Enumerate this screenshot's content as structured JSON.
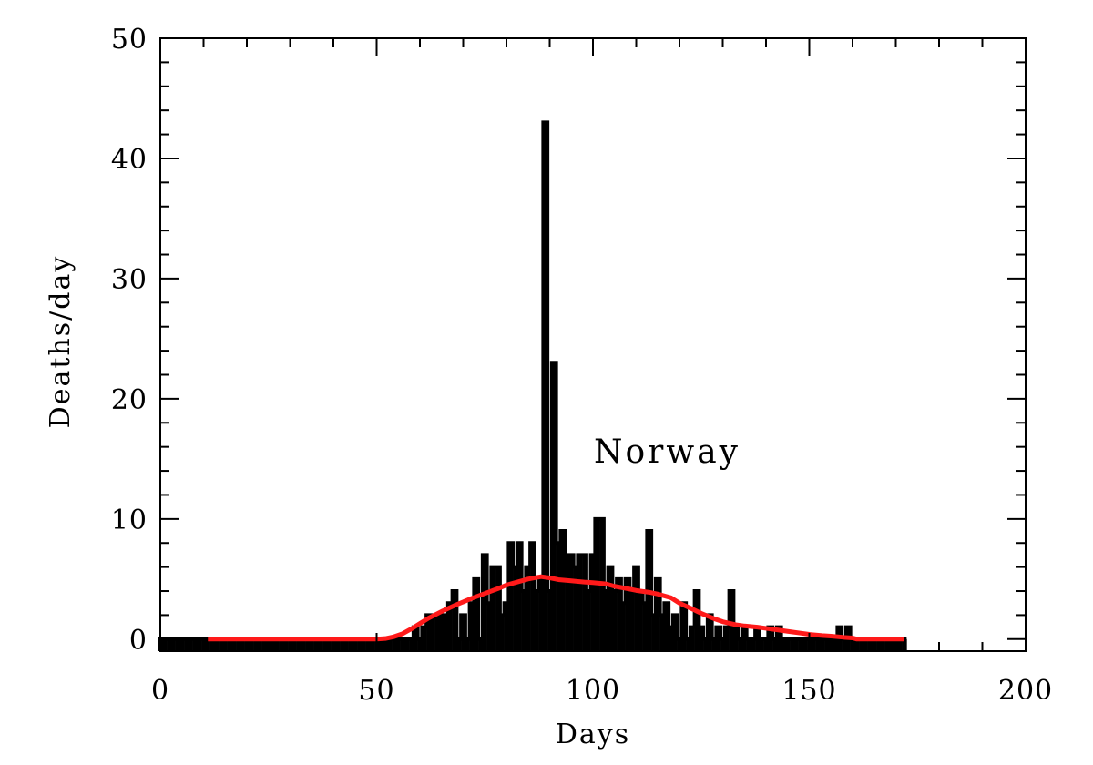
{
  "chart_data": {
    "type": "line",
    "title": "",
    "xlabel": "Days",
    "ylabel": "Deaths/day",
    "xlim": [
      0,
      200
    ],
    "ylim": [
      -1,
      50
    ],
    "x_ticks": [
      "0",
      "50",
      "100",
      "150",
      "200"
    ],
    "y_ticks": [
      "0",
      "10",
      "20",
      "30",
      "40",
      "50"
    ],
    "grid": false,
    "legend": "none",
    "annotations": [
      {
        "text": "Norway",
        "x": 117,
        "y": 16
      }
    ],
    "series": [
      {
        "style": "histogram-step",
        "color": "#000000",
        "x": [
          0,
          1,
          2,
          3,
          4,
          5,
          6,
          7,
          8,
          9,
          10,
          11,
          12,
          13,
          14,
          15,
          16,
          17,
          18,
          19,
          20,
          21,
          22,
          23,
          24,
          25,
          26,
          27,
          28,
          29,
          30,
          31,
          32,
          33,
          34,
          35,
          36,
          37,
          38,
          39,
          40,
          41,
          42,
          43,
          44,
          45,
          46,
          47,
          48,
          49,
          50,
          51,
          52,
          53,
          54,
          55,
          56,
          57,
          58,
          59,
          60,
          61,
          62,
          63,
          64,
          65,
          66,
          67,
          68,
          69,
          70,
          71,
          72,
          73,
          74,
          75,
          76,
          77,
          78,
          79,
          80,
          81,
          82,
          83,
          84,
          85,
          86,
          87,
          88,
          89,
          90,
          91,
          92,
          93,
          94,
          95,
          96,
          97,
          98,
          99,
          100,
          101,
          102,
          103,
          104,
          105,
          106,
          107,
          108,
          109,
          110,
          111,
          112,
          113,
          114,
          115,
          116,
          117,
          118,
          119,
          120,
          121,
          122,
          123,
          124,
          125,
          126,
          127,
          128,
          129,
          130,
          131,
          132,
          133,
          134,
          135,
          136,
          137,
          138,
          139,
          140,
          141,
          142,
          143,
          144,
          145,
          146,
          147,
          148,
          149,
          150,
          151,
          152,
          153,
          154,
          155,
          156,
          157,
          158,
          159,
          160,
          161,
          162,
          163,
          164,
          165,
          166,
          167,
          168,
          169,
          170,
          171,
          172
        ],
        "values": [
          0,
          0,
          0,
          0,
          0,
          0,
          0,
          0,
          0,
          0,
          0,
          0,
          0,
          0,
          0,
          0,
          0,
          0,
          0,
          0,
          0,
          0,
          0,
          0,
          0,
          0,
          0,
          0,
          0,
          0,
          0,
          0,
          0,
          0,
          0,
          0,
          0,
          0,
          0,
          0,
          0,
          0,
          0,
          0,
          0,
          0,
          0,
          0,
          0,
          0,
          0,
          0,
          0,
          0,
          0,
          0,
          0,
          0,
          0,
          1,
          0,
          1,
          2,
          2,
          2,
          2,
          2,
          3,
          4,
          0,
          2,
          0,
          3,
          5,
          0,
          7,
          3,
          6,
          6,
          2,
          3,
          8,
          6,
          8,
          4,
          6,
          8,
          4,
          5,
          43,
          4,
          23,
          8,
          9,
          5,
          7,
          6,
          7,
          7,
          4,
          7,
          10,
          10,
          4,
          6,
          4,
          5,
          3,
          5,
          4,
          6,
          4,
          3,
          9,
          2,
          5,
          2,
          3,
          1,
          2,
          0,
          3,
          0,
          1,
          4,
          1,
          0,
          2,
          0,
          1,
          0,
          1,
          4,
          1,
          0,
          1,
          0,
          0,
          1,
          0,
          0,
          1,
          0,
          1,
          0,
          0,
          0,
          0,
          0,
          0,
          0,
          0,
          0,
          0,
          0,
          0,
          0,
          1,
          0,
          1,
          0,
          0,
          0,
          0,
          0,
          0,
          0,
          0,
          0,
          0,
          0,
          0,
          0
        ]
      },
      {
        "style": "smooth",
        "color": "#ff1a1a",
        "x": [
          11,
          20,
          30,
          40,
          45,
          48,
          50,
          52,
          54,
          56,
          58,
          60,
          62,
          65,
          68,
          70,
          72,
          75,
          78,
          80,
          83,
          85,
          88,
          90,
          92,
          95,
          98,
          100,
          103,
          105,
          108,
          110,
          113,
          115,
          118,
          120,
          123,
          125,
          128,
          130,
          133,
          135,
          138,
          140,
          143,
          145,
          148,
          150,
          153,
          155,
          158,
          160,
          161,
          163,
          165,
          170,
          172
        ],
        "values": [
          0,
          0,
          0,
          0,
          0,
          0,
          0,
          0.05,
          0.2,
          0.45,
          0.85,
          1.3,
          1.75,
          2.3,
          2.8,
          3.1,
          3.4,
          3.8,
          4.2,
          4.5,
          4.8,
          5.0,
          5.2,
          5.1,
          4.95,
          4.85,
          4.75,
          4.7,
          4.6,
          4.4,
          4.2,
          4.05,
          3.9,
          3.75,
          3.45,
          3.0,
          2.5,
          2.15,
          1.7,
          1.45,
          1.2,
          1.1,
          1.0,
          0.9,
          0.75,
          0.65,
          0.5,
          0.4,
          0.3,
          0.25,
          0.15,
          0.1,
          0,
          0,
          0,
          0,
          0
        ]
      }
    ]
  }
}
